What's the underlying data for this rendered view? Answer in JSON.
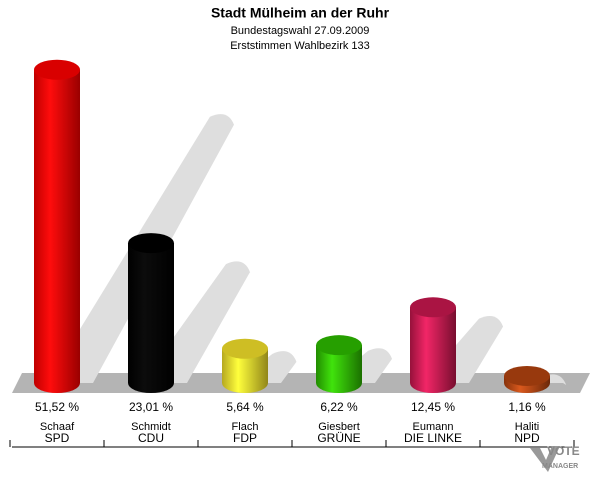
{
  "chart_data": {
    "type": "bar",
    "title": "Stadt Mülheim an der Ruhr",
    "subtitle": "Bundestagswahl 27.09.2009",
    "subtitle2": "Erststimmen Wahlbezirk 133",
    "categories": [
      "SPD",
      "CDU",
      "FDP",
      "GRÜNE",
      "DIE LINKE",
      "NPD"
    ],
    "candidates": [
      "Schaaf",
      "Schmidt",
      "Flach",
      "Giesbert",
      "Eumann",
      "Haliti"
    ],
    "values": [
      51.52,
      23.01,
      5.64,
      6.22,
      12.45,
      1.16
    ],
    "value_labels": [
      "51,52 %",
      "23,01 %",
      "5,64 %",
      "6,22 %",
      "12,45 %",
      "1,16 %"
    ],
    "colors": [
      "#ff0000",
      "#000000",
      "#f2e02a",
      "#2dbb00",
      "#c8174f",
      "#b3430f"
    ],
    "logo": [
      "VOTE",
      "MANAGER"
    ]
  }
}
